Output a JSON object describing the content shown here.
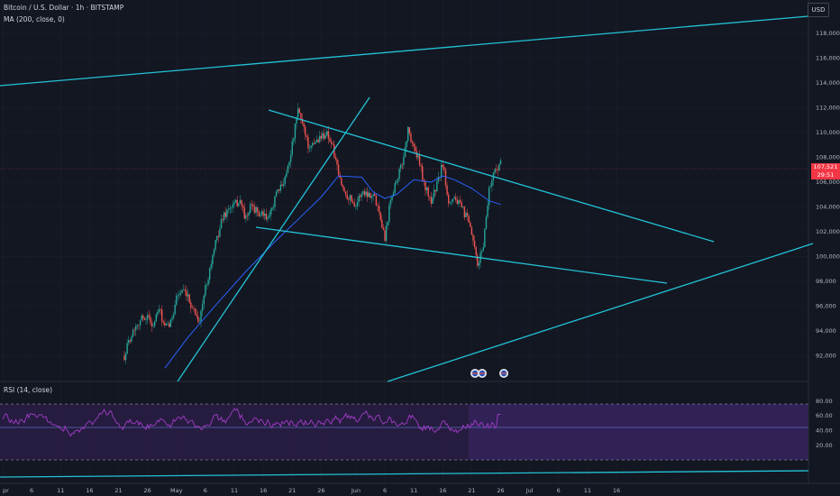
{
  "header": {
    "symbol_title": "Bitcoin / U.S. Dollar · 1h · BITSTAMP",
    "ma_indicator": "MA (200, close, 0)"
  },
  "currency_button": "USD",
  "rsi_panel": {
    "title": "RSI (14, close)"
  },
  "last_price": {
    "value": "107,521",
    "countdown": "29:51"
  },
  "colors": {
    "background": "#131722",
    "grid": "#1c202b",
    "trendline": "#22c3d6",
    "ma_line": "#2962ff",
    "candle_up": "#26a69a",
    "candle_down": "#ef5350",
    "rsi_line": "#a33cc8",
    "rsi_band": "#7e57c2",
    "price_tag": "#f23645"
  },
  "price_axis": {
    "labels": [
      "118,000",
      "116,000",
      "114,000",
      "112,000",
      "110,000",
      "108,000",
      "106,000",
      "104,000",
      "102,000",
      "100,000",
      "98,000",
      "96,000",
      "94,000",
      "92,000"
    ]
  },
  "rsi_axis": {
    "labels": [
      "80.00",
      "60.00",
      "40.00",
      "20.00"
    ]
  },
  "time_axis": {
    "labels": [
      "pr",
      "6",
      "11",
      "16",
      "21",
      "26",
      "May",
      "6",
      "11",
      "16",
      "21",
      "26",
      "Jun",
      "6",
      "11",
      "16",
      "21",
      "26",
      "Jul",
      "6",
      "11",
      "16"
    ]
  },
  "chart_data": {
    "type": "candlestick",
    "symbol": "Bitcoin / U.S. Dollar",
    "interval": "1h",
    "exchange": "BITSTAMP",
    "ylim": [
      91000,
      119500
    ],
    "path_points": [
      {
        "t": "Apr 22",
        "v": 92000
      },
      {
        "t": "Apr 23",
        "v": 93500
      },
      {
        "t": "Apr 24",
        "v": 94500
      },
      {
        "t": "Apr 25",
        "v": 95000
      },
      {
        "t": "Apr 26",
        "v": 95200
      },
      {
        "t": "Apr 27",
        "v": 94400
      },
      {
        "t": "Apr 28",
        "v": 95800
      },
      {
        "t": "Apr 29",
        "v": 94200
      },
      {
        "t": "Apr 30",
        "v": 94600
      },
      {
        "t": "May 1",
        "v": 96800
      },
      {
        "t": "May 2",
        "v": 97200
      },
      {
        "t": "May 3",
        "v": 96600
      },
      {
        "t": "May 5",
        "v": 94800
      },
      {
        "t": "May 6",
        "v": 97500
      },
      {
        "t": "May 8",
        "v": 101500
      },
      {
        "t": "May 9",
        "v": 103200
      },
      {
        "t": "May 10",
        "v": 103800
      },
      {
        "t": "May 12",
        "v": 104500
      },
      {
        "t": "May 13",
        "v": 103000
      },
      {
        "t": "May 14",
        "v": 104200
      },
      {
        "t": "May 15",
        "v": 103500
      },
      {
        "t": "May 17",
        "v": 103000
      },
      {
        "t": "May 18",
        "v": 104800
      },
      {
        "t": "May 19",
        "v": 105500
      },
      {
        "t": "May 20",
        "v": 106800
      },
      {
        "t": "May 21",
        "v": 109000
      },
      {
        "t": "May 22",
        "v": 111800
      },
      {
        "t": "May 23",
        "v": 110500
      },
      {
        "t": "May 24",
        "v": 108500
      },
      {
        "t": "May 25",
        "v": 109300
      },
      {
        "t": "May 27",
        "v": 110000
      },
      {
        "t": "May 28",
        "v": 108800
      },
      {
        "t": "May 29",
        "v": 106500
      },
      {
        "t": "May 30",
        "v": 105200
      },
      {
        "t": "Jun 1",
        "v": 104200
      },
      {
        "t": "Jun 2",
        "v": 105200
      },
      {
        "t": "Jun 4",
        "v": 105000
      },
      {
        "t": "Jun 5",
        "v": 103800
      },
      {
        "t": "Jun 6",
        "v": 101500
      },
      {
        "t": "Jun 7",
        "v": 104800
      },
      {
        "t": "Jun 9",
        "v": 107500
      },
      {
        "t": "Jun 10",
        "v": 110200
      },
      {
        "t": "Jun 11",
        "v": 108800
      },
      {
        "t": "Jun 12",
        "v": 107500
      },
      {
        "t": "Jun 13",
        "v": 105500
      },
      {
        "t": "Jun 14",
        "v": 104500
      },
      {
        "t": "Jun 15",
        "v": 105800
      },
      {
        "t": "Jun 16",
        "v": 107500
      },
      {
        "t": "Jun 17",
        "v": 104500
      },
      {
        "t": "Jun 18",
        "v": 104800
      },
      {
        "t": "Jun 20",
        "v": 103300
      },
      {
        "t": "Jun 21",
        "v": 101800
      },
      {
        "t": "Jun 22",
        "v": 99200
      },
      {
        "t": "Jun 23",
        "v": 101000
      },
      {
        "t": "Jun 24",
        "v": 105500
      },
      {
        "t": "Jun 25",
        "v": 107000
      },
      {
        "t": "Jun 26",
        "v": 107521
      }
    ],
    "moving_average_200": [
      {
        "t": "Apr 29",
        "v": 91000
      },
      {
        "t": "May 3",
        "v": 93500
      },
      {
        "t": "May 8",
        "v": 96200
      },
      {
        "t": "May 13",
        "v": 98800
      },
      {
        "t": "May 18",
        "v": 101200
      },
      {
        "t": "May 22",
        "v": 103000
      },
      {
        "t": "May 26",
        "v": 104800
      },
      {
        "t": "May 29",
        "v": 106500
      },
      {
        "t": "Jun 2",
        "v": 106400
      },
      {
        "t": "Jun 4",
        "v": 105200
      },
      {
        "t": "Jun 6",
        "v": 104700
      },
      {
        "t": "Jun 8",
        "v": 105000
      },
      {
        "t": "Jun 11",
        "v": 106200
      },
      {
        "t": "Jun 14",
        "v": 106000
      },
      {
        "t": "Jun 16",
        "v": 106500
      },
      {
        "t": "Jun 18",
        "v": 106200
      },
      {
        "t": "Jun 21",
        "v": 105500
      },
      {
        "t": "Jun 24",
        "v": 104500
      },
      {
        "t": "Jun 26",
        "v": 104200
      }
    ],
    "rsi": {
      "title": "RSI (14, close)",
      "ylim": [
        15,
        85
      ],
      "overbought": 70,
      "oversold": 30,
      "mid": 50,
      "last_value": 62
    }
  }
}
